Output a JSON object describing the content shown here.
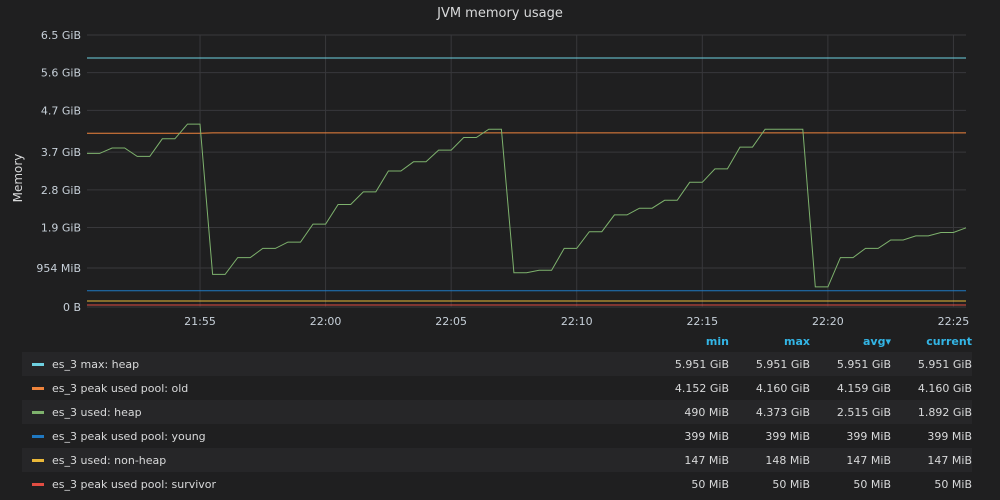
{
  "panel": {
    "title": "JVM memory usage"
  },
  "chart_data": {
    "type": "line",
    "title": "JVM memory usage",
    "ylabel": "Memory",
    "xlabel": "",
    "ylim_gib": [
      0,
      6.5
    ],
    "y_ticks": [
      {
        "label": "6.5 GiB",
        "v": 6.5
      },
      {
        "label": "5.6 GiB",
        "v": 5.6
      },
      {
        "label": "4.7 GiB",
        "v": 4.7
      },
      {
        "label": "3.7 GiB",
        "v": 3.7
      },
      {
        "label": "2.8 GiB",
        "v": 2.8
      },
      {
        "label": "1.9 GiB",
        "v": 1.9
      },
      {
        "label": "954 MiB",
        "v": 0.9316
      },
      {
        "label": "0 B",
        "v": 0
      }
    ],
    "x_range_min": [
      0,
      70
    ],
    "x_ticks": [
      {
        "label": "21:55",
        "t": 9
      },
      {
        "label": "22:00",
        "t": 19
      },
      {
        "label": "22:05",
        "t": 29
      },
      {
        "label": "22:10",
        "t": 39
      },
      {
        "label": "22:15",
        "t": 49
      },
      {
        "label": "22:20",
        "t": 59
      },
      {
        "label": "22:25",
        "t": 69
      }
    ],
    "grid": true,
    "legend_position": "bottom",
    "series": [
      {
        "name": "es_3 max: heap",
        "color": "#6ed0e0",
        "points": [
          [
            0,
            5.951
          ],
          [
            70,
            5.951
          ]
        ]
      },
      {
        "name": "es_3 peak used pool: old",
        "color": "#ef843c",
        "points": [
          [
            0,
            4.152
          ],
          [
            9,
            4.152
          ],
          [
            10,
            4.16
          ],
          [
            70,
            4.16
          ]
        ]
      },
      {
        "name": "es_3 used: heap",
        "color": "#7eb26d",
        "points": [
          [
            0,
            3.67
          ],
          [
            1,
            3.67
          ],
          [
            2,
            3.8
          ],
          [
            3,
            3.8
          ],
          [
            4,
            3.6
          ],
          [
            5,
            3.6
          ],
          [
            6,
            4.02
          ],
          [
            7,
            4.02
          ],
          [
            8,
            4.37
          ],
          [
            9,
            4.37
          ],
          [
            10,
            0.78
          ],
          [
            11,
            0.78
          ],
          [
            12,
            1.18
          ],
          [
            13,
            1.18
          ],
          [
            14,
            1.4
          ],
          [
            15,
            1.4
          ],
          [
            16,
            1.55
          ],
          [
            17,
            1.55
          ],
          [
            18,
            1.98
          ],
          [
            19,
            1.98
          ],
          [
            20,
            2.45
          ],
          [
            21,
            2.45
          ],
          [
            22,
            2.75
          ],
          [
            23,
            2.75
          ],
          [
            24,
            3.25
          ],
          [
            25,
            3.25
          ],
          [
            26,
            3.47
          ],
          [
            27,
            3.47
          ],
          [
            28,
            3.75
          ],
          [
            29,
            3.75
          ],
          [
            30,
            4.05
          ],
          [
            31,
            4.05
          ],
          [
            32,
            4.25
          ],
          [
            33,
            4.25
          ],
          [
            34,
            0.82
          ],
          [
            35,
            0.82
          ],
          [
            36,
            0.88
          ],
          [
            37,
            0.88
          ],
          [
            38,
            1.4
          ],
          [
            39,
            1.4
          ],
          [
            40,
            1.8
          ],
          [
            41,
            1.8
          ],
          [
            42,
            2.2
          ],
          [
            43,
            2.2
          ],
          [
            44,
            2.36
          ],
          [
            45,
            2.36
          ],
          [
            46,
            2.55
          ],
          [
            47,
            2.55
          ],
          [
            48,
            2.98
          ],
          [
            49,
            2.98
          ],
          [
            50,
            3.3
          ],
          [
            51,
            3.3
          ],
          [
            52,
            3.82
          ],
          [
            53,
            3.82
          ],
          [
            54,
            4.25
          ],
          [
            55,
            4.25
          ],
          [
            56,
            4.25
          ],
          [
            57,
            4.25
          ],
          [
            58,
            0.48
          ],
          [
            59,
            0.48
          ],
          [
            60,
            1.18
          ],
          [
            61,
            1.18
          ],
          [
            62,
            1.4
          ],
          [
            63,
            1.4
          ],
          [
            64,
            1.6
          ],
          [
            65,
            1.6
          ],
          [
            66,
            1.7
          ],
          [
            67,
            1.7
          ],
          [
            68,
            1.78
          ],
          [
            69,
            1.78
          ],
          [
            70,
            1.892
          ]
        ]
      },
      {
        "name": "es_3 peak used pool: young",
        "color": "#1f78c1",
        "points": [
          [
            0,
            0.3896
          ],
          [
            70,
            0.3896
          ]
        ]
      },
      {
        "name": "es_3 used: non-heap",
        "color": "#eab839",
        "points": [
          [
            0,
            0.1436
          ],
          [
            70,
            0.1436
          ]
        ]
      },
      {
        "name": "es_3 peak used pool: survivor",
        "color": "#e24d42",
        "points": [
          [
            0,
            0.0488
          ],
          [
            70,
            0.0488
          ]
        ]
      }
    ]
  },
  "legend": {
    "headers": {
      "min": "min",
      "max": "max",
      "avg": "avg▾",
      "current": "current"
    },
    "rows": [
      {
        "name": "es_3 max: heap",
        "color": "#6ed0e0",
        "min": "5.951 GiB",
        "max": "5.951 GiB",
        "avg": "5.951 GiB",
        "current": "5.951 GiB"
      },
      {
        "name": "es_3 peak used pool: old",
        "color": "#ef843c",
        "min": "4.152 GiB",
        "max": "4.160 GiB",
        "avg": "4.159 GiB",
        "current": "4.160 GiB"
      },
      {
        "name": "es_3 used: heap",
        "color": "#7eb26d",
        "min": "490 MiB",
        "max": "4.373 GiB",
        "avg": "2.515 GiB",
        "current": "1.892 GiB"
      },
      {
        "name": "es_3 peak used pool: young",
        "color": "#1f78c1",
        "min": "399 MiB",
        "max": "399 MiB",
        "avg": "399 MiB",
        "current": "399 MiB"
      },
      {
        "name": "es_3 used: non-heap",
        "color": "#eab839",
        "min": "147 MiB",
        "max": "148 MiB",
        "avg": "147 MiB",
        "current": "147 MiB"
      },
      {
        "name": "es_3 peak used pool: survivor",
        "color": "#e24d42",
        "min": "50 MiB",
        "max": "50 MiB",
        "avg": "50 MiB",
        "current": "50 MiB"
      }
    ]
  }
}
